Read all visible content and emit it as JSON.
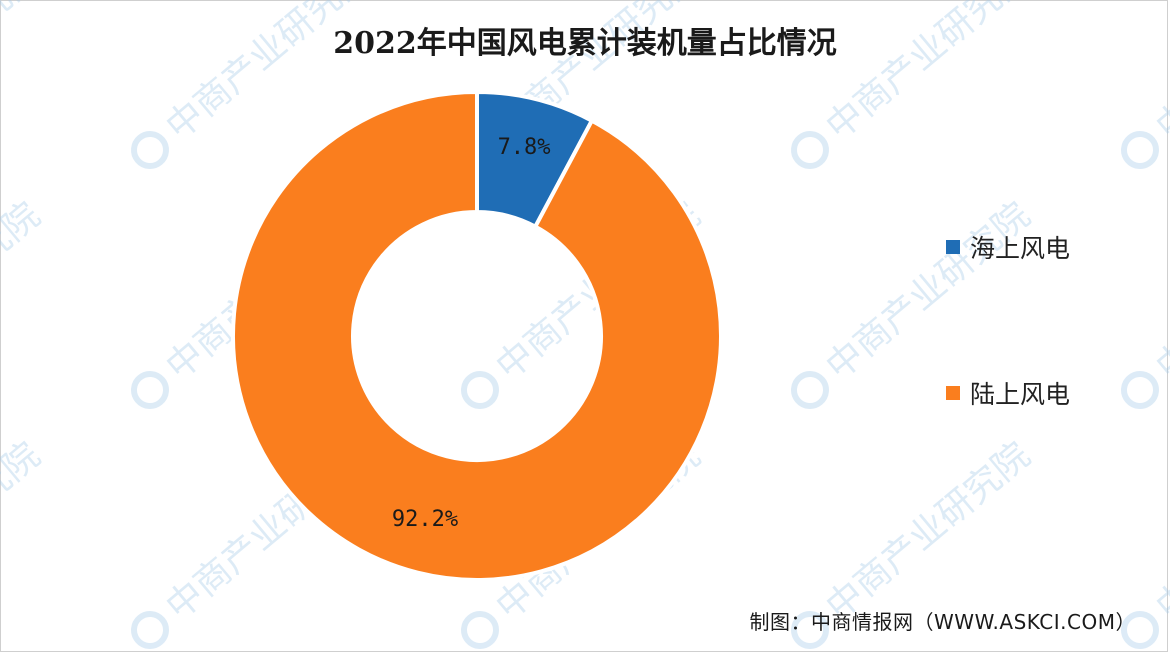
{
  "watermark": {
    "text": "中商产业研究院",
    "color": "#9fc7e8"
  },
  "title": "2022年中国风电累计装机量占比情况",
  "chart_data": {
    "type": "pie",
    "title": "2022年中国风电累计装机量占比情况",
    "categories": [
      "海上风电",
      "陆上风电"
    ],
    "values": [
      7.8,
      92.2
    ],
    "unit": "%",
    "data_labels": [
      "7.8%",
      "92.2%"
    ],
    "colors": [
      "#1f6db5",
      "#fa7e1e"
    ],
    "donut": true,
    "legend_position": "right"
  },
  "source": "制图：中商情报网（WWW.ASKCI.COM）"
}
